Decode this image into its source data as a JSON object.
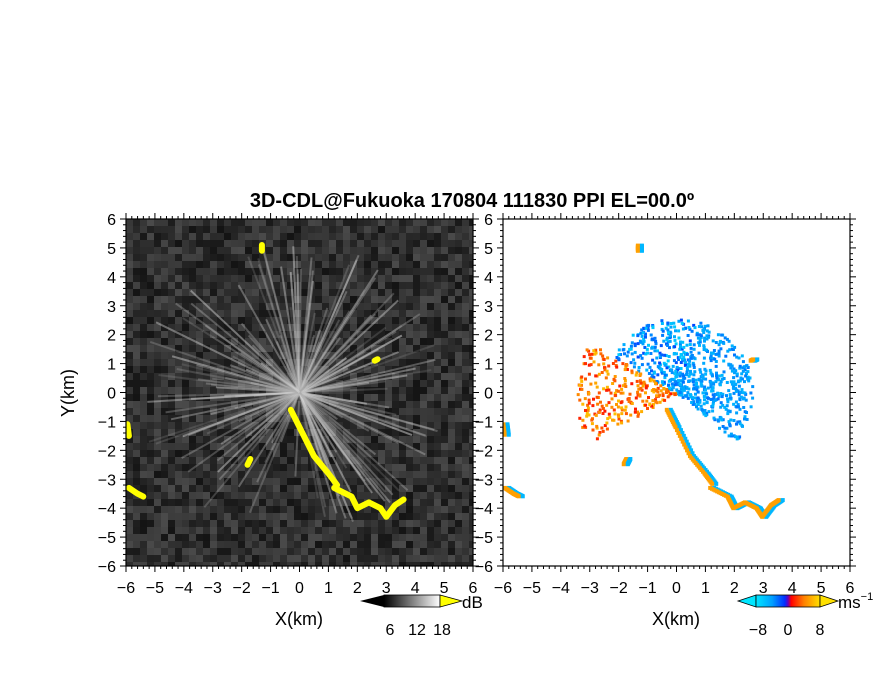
{
  "chart_data": [
    {
      "type": "heatmap",
      "title": "3D-CDL@Fukuoka 170804 111830 PPI EL=00.0º",
      "xlabel": "X(km)",
      "ylabel": "Y(km)",
      "xlim": [
        -6,
        6
      ],
      "ylim": [
        -6,
        6
      ],
      "x_ticks": [
        "−6",
        "−5",
        "−4",
        "−3",
        "−2",
        "−1",
        "0",
        "1",
        "2",
        "3",
        "4",
        "5",
        "6"
      ],
      "y_ticks": [
        "6",
        "5",
        "4",
        "3",
        "2",
        "1",
        "0",
        "−1",
        "−2",
        "−3",
        "−4",
        "−5",
        "−6"
      ],
      "colorbar": {
        "unit": "dB",
        "ticks": [
          "6",
          "12",
          "18"
        ],
        "range": [
          0,
          24
        ]
      },
      "highlight_color": "#ffff00",
      "highlight_regions": [
        {
          "polyline": [
            [
              -0.3,
              -0.6
            ],
            [
              0,
              -1.2
            ],
            [
              0.5,
              -2.2
            ],
            [
              1.0,
              -2.8
            ],
            [
              1.3,
              -3.2
            ]
          ]
        },
        {
          "polyline": [
            [
              1.2,
              -3.3
            ],
            [
              1.8,
              -3.6
            ],
            [
              2.0,
              -4.0
            ],
            [
              2.4,
              -3.8
            ],
            [
              2.8,
              -4.0
            ],
            [
              3.0,
              -4.3
            ],
            [
              3.3,
              -3.9
            ],
            [
              3.6,
              -3.7
            ]
          ]
        },
        {
          "polyline": [
            [
              -5.95,
              -1.1
            ],
            [
              -5.9,
              -1.5
            ]
          ]
        },
        {
          "polyline": [
            [
              -5.9,
              -3.3
            ],
            [
              -5.6,
              -3.5
            ],
            [
              -5.4,
              -3.6
            ]
          ]
        },
        {
          "polyline": [
            [
              -1.7,
              -2.3
            ],
            [
              -1.8,
              -2.5
            ]
          ]
        },
        {
          "polyline": [
            [
              -1.3,
              4.9
            ],
            [
              -1.3,
              5.1
            ]
          ]
        },
        {
          "polyline": [
            [
              2.6,
              1.1
            ],
            [
              2.7,
              1.15
            ]
          ]
        }
      ]
    },
    {
      "type": "heatmap",
      "xlabel": "X(km)",
      "xlim": [
        -6,
        6
      ],
      "ylim": [
        -6,
        6
      ],
      "x_ticks": [
        "−6",
        "−5",
        "−4",
        "−3",
        "−2",
        "−1",
        "0",
        "1",
        "2",
        "3",
        "4",
        "5",
        "6"
      ],
      "y_ticks": [
        "6",
        "5",
        "4",
        "3",
        "2",
        "1",
        "0",
        "−1",
        "−2",
        "−3",
        "−4",
        "−5",
        "−6"
      ],
      "colorbar": {
        "unit": "ms",
        "unit_exponent": "−1",
        "ticks": [
          "−8",
          "0",
          "8"
        ],
        "range": [
          -12,
          12
        ]
      },
      "sectors": [
        {
          "name_hint": "approaching-blue",
          "azimuth_deg": [
            75,
            150
          ],
          "velocity_ms": [
            -10,
            -2
          ]
        },
        {
          "name_hint": "receding-red",
          "azimuth_deg": [
            150,
            210
          ],
          "velocity_ms": [
            2,
            10
          ]
        },
        {
          "name_hint": "cyan-east",
          "azimuth_deg": [
            -40,
            75
          ],
          "velocity_ms": [
            -8,
            -4
          ]
        }
      ]
    }
  ]
}
